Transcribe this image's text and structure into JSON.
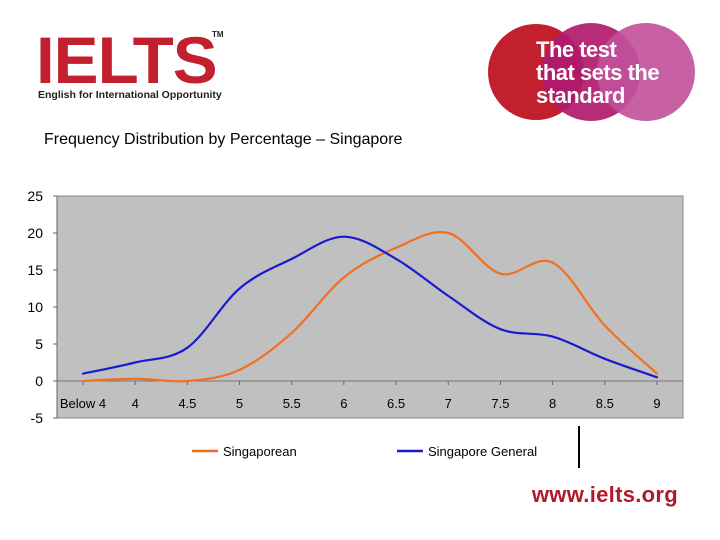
{
  "logo": {
    "word": "IELTS",
    "tm": "TM",
    "tagline": "English for International Opportunity",
    "color": "#c2202e"
  },
  "badge": {
    "lines": [
      "The test",
      "that sets the",
      "standard"
    ],
    "colors": [
      "#c2202e",
      "#b01a6e",
      "#c2509a"
    ]
  },
  "chart_title": "Frequency Distribution by Percentage – Singapore",
  "footer_url": "www.ielts.org",
  "chart_data": {
    "type": "line",
    "title": "Frequency Distribution by Percentage – Singapore",
    "xlabel": "",
    "ylabel": "",
    "categories": [
      "Below 4",
      "4",
      "4.5",
      "5",
      "5.5",
      "6",
      "6.5",
      "7",
      "7.5",
      "8",
      "8.5",
      "9"
    ],
    "ylim": [
      -5,
      25
    ],
    "yticks": [
      25,
      20,
      15,
      10,
      5,
      0,
      -5
    ],
    "grid": false,
    "plot_background": "#c0c0c0",
    "legend_position": "bottom",
    "series": [
      {
        "name": "Singaporean",
        "color": "#f07020",
        "values": [
          0.0,
          0.3,
          0.0,
          1.5,
          6.5,
          14.0,
          18.0,
          20.0,
          14.5,
          16.0,
          7.5,
          1.0
        ]
      },
      {
        "name": "Singapore General",
        "color": "#1a1ad0",
        "values": [
          1.0,
          2.5,
          4.5,
          12.5,
          16.5,
          19.5,
          16.5,
          11.5,
          7.0,
          6.0,
          3.0,
          0.5
        ]
      }
    ]
  }
}
